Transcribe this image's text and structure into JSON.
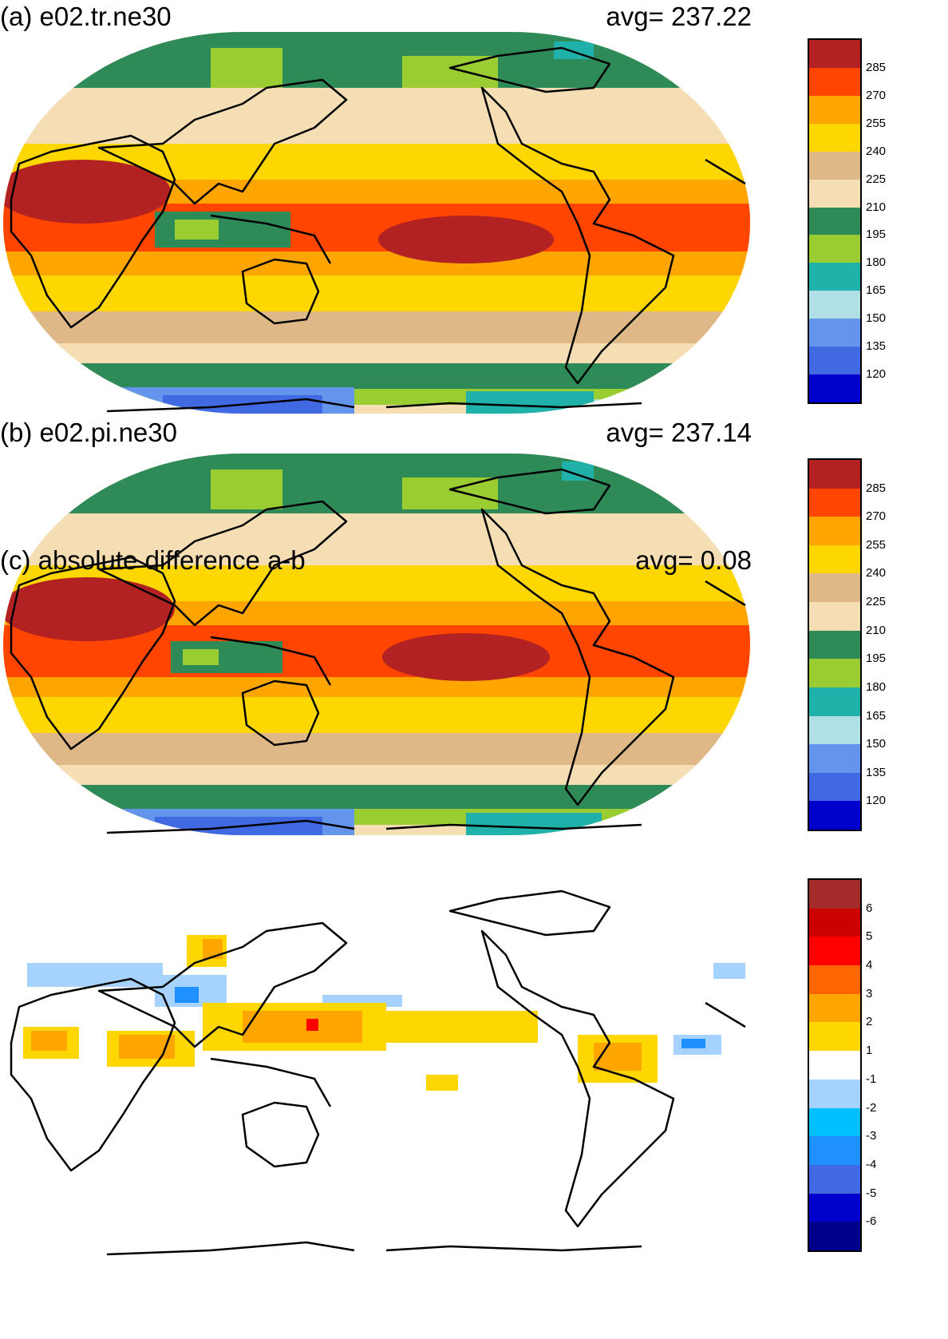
{
  "panels": [
    {
      "title": "(a) e02.tr.ne30",
      "avg_text": "avg=  237.22",
      "colorbar": {
        "labels": [
          "285",
          "270",
          "255",
          "240",
          "225",
          "210",
          "195",
          "180",
          "165",
          "150",
          "135",
          "120"
        ],
        "colors": [
          "#b22222",
          "#ff4500",
          "#ffa500",
          "#ffd700",
          "#deb887",
          "#f5deb3",
          "#2e8b57",
          "#9acd32",
          "#20b2aa",
          "#b0e0e6",
          "#6495ed",
          "#4169e1",
          "#0000cd"
        ]
      },
      "map_style": "full"
    },
    {
      "title": "(b) e02.pi.ne30",
      "avg_text": "avg=  237.14",
      "colorbar": {
        "labels": [
          "285",
          "270",
          "255",
          "240",
          "225",
          "210",
          "195",
          "180",
          "165",
          "150",
          "135",
          "120"
        ],
        "colors": [
          "#b22222",
          "#ff4500",
          "#ffa500",
          "#ffd700",
          "#deb887",
          "#f5deb3",
          "#2e8b57",
          "#9acd32",
          "#20b2aa",
          "#b0e0e6",
          "#6495ed",
          "#4169e1",
          "#0000cd"
        ]
      },
      "map_style": "full"
    },
    {
      "title": "(c) absolute difference a-b",
      "avg_text": "avg=    0.08",
      "colorbar": {
        "labels": [
          "6",
          "5",
          "4",
          "3",
          "2",
          "1",
          "-1",
          "-2",
          "-3",
          "-4",
          "-5",
          "-6"
        ],
        "colors": [
          "#a52a2a",
          "#cd0000",
          "#ff0000",
          "#ff6600",
          "#ffa500",
          "#ffd700",
          "#ffffff",
          "#a6d2ff",
          "#00bfff",
          "#1e90ff",
          "#4169e1",
          "#0000cd",
          "#00008b"
        ]
      },
      "map_style": "diff"
    }
  ]
}
